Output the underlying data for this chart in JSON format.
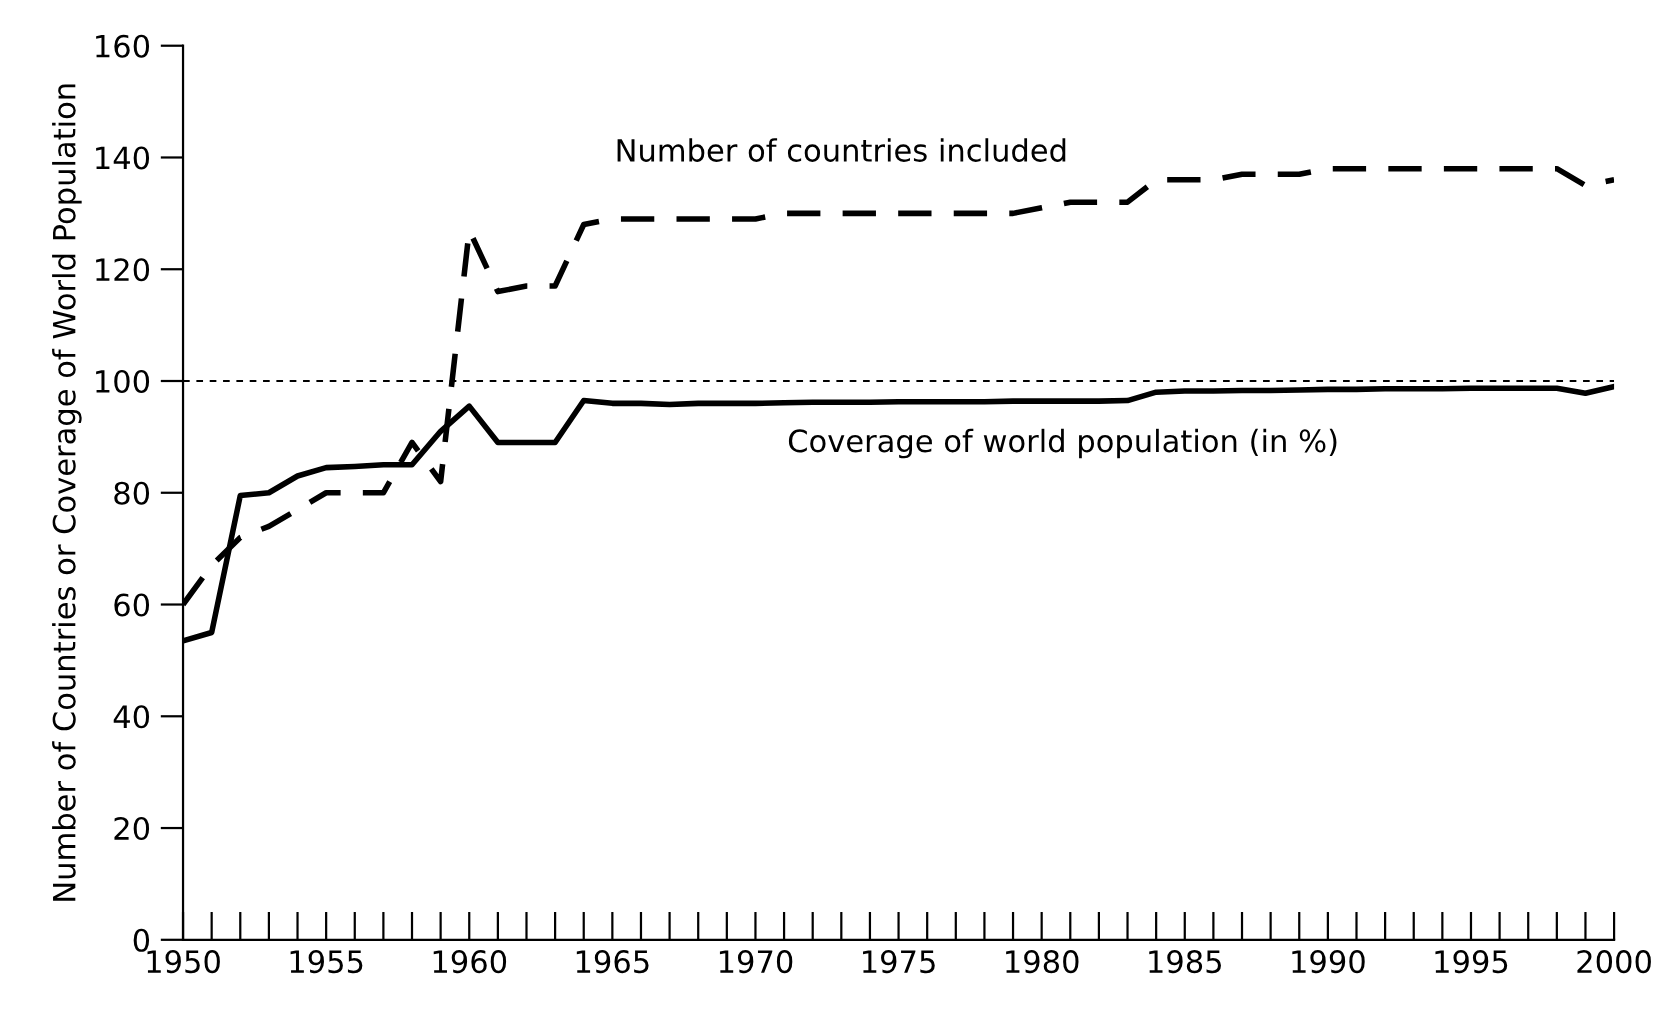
{
  "chart_data": {
    "type": "line",
    "ylabel": "Number of Countries or Coverage of World Population",
    "x": [
      1950,
      1951,
      1952,
      1953,
      1954,
      1955,
      1956,
      1957,
      1958,
      1959,
      1960,
      1961,
      1962,
      1963,
      1964,
      1965,
      1966,
      1967,
      1968,
      1969,
      1970,
      1971,
      1972,
      1973,
      1974,
      1975,
      1976,
      1977,
      1978,
      1979,
      1980,
      1981,
      1982,
      1983,
      1984,
      1985,
      1986,
      1987,
      1988,
      1989,
      1990,
      1991,
      1992,
      1993,
      1994,
      1995,
      1996,
      1997,
      1998,
      1999,
      2000
    ],
    "series": [
      {
        "name": "Number of countries included",
        "color": "#000000",
        "line_style": "dashed",
        "values": [
          60,
          67,
          72,
          74,
          77,
          80,
          80,
          80,
          89,
          82,
          127,
          116,
          117,
          117,
          128,
          129,
          129,
          129,
          129,
          129,
          129,
          130,
          130,
          130,
          130,
          130,
          130,
          130,
          130,
          130,
          131,
          132,
          132,
          132,
          136,
          136,
          136,
          137,
          137,
          137,
          138,
          138,
          138,
          138,
          138,
          138,
          138,
          138,
          138,
          135,
          136
        ]
      },
      {
        "name": "Coverage of world population (in %)",
        "color": "#000000",
        "line_style": "solid",
        "values": [
          53.5,
          55,
          79.5,
          80,
          83,
          84.5,
          84.7,
          85,
          85,
          91,
          95.5,
          89,
          89,
          89,
          96.5,
          96,
          96,
          95.8,
          96,
          96,
          96,
          96.1,
          96.2,
          96.2,
          96.2,
          96.3,
          96.3,
          96.3,
          96.3,
          96.4,
          96.4,
          96.4,
          96.4,
          96.5,
          98,
          98.2,
          98.2,
          98.3,
          98.3,
          98.4,
          98.5,
          98.5,
          98.6,
          98.6,
          98.6,
          98.7,
          98.7,
          98.7,
          98.7,
          97.8,
          99
        ]
      }
    ],
    "ref_lines": [
      {
        "axis": "y",
        "value": 100,
        "line_style": "dotted",
        "color": "#000000"
      }
    ],
    "xlim": [
      1950,
      2000
    ],
    "ylim": [
      0,
      160
    ],
    "xticks": [
      1950,
      {
        "value": 1951,
        "label": null
      },
      {
        "value": 1952,
        "label": null
      },
      {
        "value": 1953,
        "label": null
      },
      {
        "value": 1954,
        "label": null
      },
      1955,
      {
        "value": 1956,
        "label": null
      },
      {
        "value": 1957,
        "label": null
      },
      {
        "value": 1958,
        "label": null
      },
      {
        "value": 1959,
        "label": null
      },
      1960,
      {
        "value": 1961,
        "label": null
      },
      {
        "value": 1962,
        "label": null
      },
      {
        "value": 1963,
        "label": null
      },
      {
        "value": 1964,
        "label": null
      },
      1965,
      {
        "value": 1966,
        "label": null
      },
      {
        "value": 1967,
        "label": null
      },
      {
        "value": 1968,
        "label": null
      },
      {
        "value": 1969,
        "label": null
      },
      1970,
      {
        "value": 1971,
        "label": null
      },
      {
        "value": 1972,
        "label": null
      },
      {
        "value": 1973,
        "label": null
      },
      {
        "value": 1974,
        "label": null
      },
      1975,
      {
        "value": 1976,
        "label": null
      },
      {
        "value": 1977,
        "label": null
      },
      {
        "value": 1978,
        "label": null
      },
      {
        "value": 1979,
        "label": null
      },
      1980,
      {
        "value": 1981,
        "label": null
      },
      {
        "value": 1982,
        "label": null
      },
      {
        "value": 1983,
        "label": null
      },
      {
        "value": 1984,
        "label": null
      },
      1985,
      {
        "value": 1986,
        "label": null
      },
      {
        "value": 1987,
        "label": null
      },
      {
        "value": 1988,
        "label": null
      },
      {
        "value": 1989,
        "label": null
      },
      1990,
      {
        "value": 1991,
        "label": null
      },
      {
        "value": 1992,
        "label": null
      },
      {
        "value": 1993,
        "label": null
      },
      {
        "value": 1994,
        "label": null
      },
      1995,
      {
        "value": 1996,
        "label": null
      },
      {
        "value": 1997,
        "label": null
      },
      {
        "value": 1998,
        "label": null
      },
      {
        "value": 1999,
        "label": null
      },
      2000
    ],
    "yticks": [
      0,
      20,
      40,
      60,
      80,
      100,
      120,
      140,
      160
    ],
    "grid": false,
    "legend": false
  }
}
